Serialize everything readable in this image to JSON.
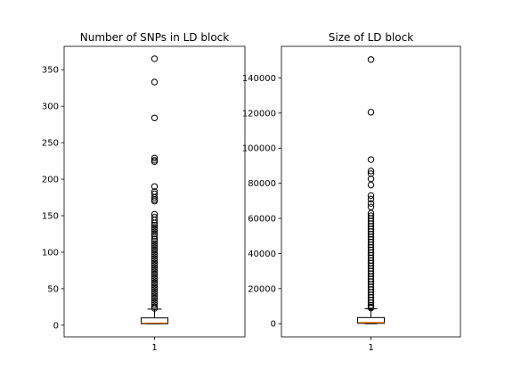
{
  "chart_data": [
    {
      "type": "box",
      "title": "Number of SNPs in LD block",
      "categories": [
        "1"
      ],
      "yticks": [
        0,
        50,
        100,
        150,
        200,
        250,
        300,
        350
      ],
      "ylim": [
        -16,
        382
      ],
      "box": {
        "q1": 2,
        "median": 3,
        "q3": 10,
        "whisker_low": 2,
        "whisker_high": 22
      },
      "fliers": [
        365,
        333,
        284,
        229,
        226,
        224,
        190,
        183,
        180,
        175,
        172,
        170,
        152,
        148,
        144,
        140,
        137,
        134,
        131,
        128,
        125,
        122,
        118,
        115,
        112,
        109,
        106,
        103,
        100,
        97,
        94,
        91,
        88,
        85,
        82,
        79,
        76,
        73,
        70,
        67,
        64,
        61,
        58,
        55,
        52,
        49,
        46,
        43,
        40,
        37,
        34,
        31,
        28,
        25,
        23
      ],
      "colors": {
        "median": "#ff7f0e",
        "box": "#000000"
      }
    },
    {
      "type": "box",
      "title": "Size of LD block",
      "categories": [
        "1"
      ],
      "yticks": [
        0,
        20000,
        40000,
        60000,
        80000,
        100000,
        120000,
        140000
      ],
      "ylim": [
        -7500,
        158000
      ],
      "box": {
        "q1": 200,
        "median": 700,
        "q3": 3500,
        "whisker_low": 0,
        "whisker_high": 8500
      },
      "fliers": [
        150500,
        120500,
        93500,
        87000,
        85500,
        82500,
        79000,
        73000,
        71000,
        68500,
        66500,
        63000,
        61500,
        60000,
        58500,
        57000,
        55500,
        54000,
        52500,
        51000,
        49500,
        48000,
        46500,
        45000,
        43500,
        42000,
        40500,
        39000,
        37500,
        36000,
        34500,
        33000,
        31500,
        30000,
        28500,
        27000,
        25500,
        24000,
        22500,
        21000,
        19500,
        18000,
        16500,
        15000,
        13500,
        12000,
        10500,
        9500,
        9000
      ],
      "colors": {
        "median": "#ff7f0e",
        "box": "#000000"
      }
    }
  ]
}
